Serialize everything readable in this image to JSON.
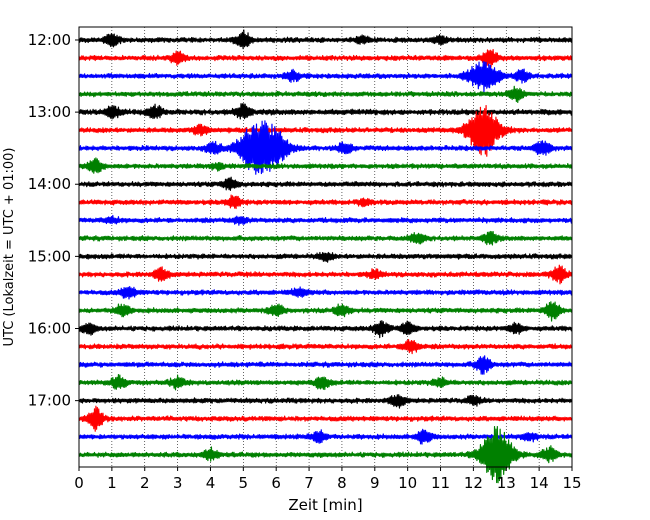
{
  "chart_data": {
    "type": "line",
    "title": "",
    "xlabel": "Zeit  [min]",
    "ylabel": "UTC (Lokalzeit = UTC + 01:00)",
    "xlim": [
      0,
      15
    ],
    "x_ticks": [
      "0",
      "1",
      "2",
      "3",
      "4",
      "5",
      "6",
      "7",
      "8",
      "9",
      "10",
      "11",
      "12",
      "13",
      "14",
      "15"
    ],
    "y_ticks": [
      "12:00",
      "13:00",
      "14:00",
      "15:00",
      "16:00",
      "17:00"
    ],
    "grid": "vertical dotted",
    "colors": [
      "#000000",
      "#ff0000",
      "#0000ff",
      "#008000"
    ],
    "trace_interval_min": 15,
    "traces": [
      {
        "start": "12:00",
        "color": "#000000",
        "base_amp": 0.22,
        "events": [
          {
            "t": 1.0,
            "a": 0.6
          },
          {
            "t": 5.0,
            "a": 0.9
          },
          {
            "t": 8.6,
            "a": 0.4
          },
          {
            "t": 11.0,
            "a": 0.4
          }
        ]
      },
      {
        "start": "12:15",
        "color": "#ff0000",
        "base_amp": 0.22,
        "events": [
          {
            "t": 3.0,
            "a": 0.6
          },
          {
            "t": 12.5,
            "a": 0.8
          }
        ]
      },
      {
        "start": "12:30",
        "color": "#0000ff",
        "base_amp": 0.22,
        "events": [
          {
            "t": 6.5,
            "a": 0.5
          },
          {
            "t": 12.3,
            "a": 1.5
          },
          {
            "t": 13.5,
            "a": 0.6
          }
        ]
      },
      {
        "start": "12:45",
        "color": "#008000",
        "base_amp": 0.22,
        "events": [
          {
            "t": 13.3,
            "a": 0.7
          }
        ]
      },
      {
        "start": "13:00",
        "color": "#000000",
        "base_amp": 0.25,
        "events": [
          {
            "t": 1.0,
            "a": 0.6
          },
          {
            "t": 2.3,
            "a": 0.6
          },
          {
            "t": 5.0,
            "a": 0.8
          }
        ]
      },
      {
        "start": "13:15",
        "color": "#ff0000",
        "base_amp": 0.22,
        "events": [
          {
            "t": 3.7,
            "a": 0.5
          },
          {
            "t": 12.3,
            "a": 2.8
          }
        ]
      },
      {
        "start": "13:30",
        "color": "#0000ff",
        "base_amp": 0.22,
        "events": [
          {
            "t": 4.1,
            "a": 0.6
          },
          {
            "t": 5.3,
            "a": 2.4
          },
          {
            "t": 5.9,
            "a": 2.0
          },
          {
            "t": 8.1,
            "a": 0.6
          },
          {
            "t": 14.1,
            "a": 0.8
          }
        ]
      },
      {
        "start": "13:45",
        "color": "#008000",
        "base_amp": 0.22,
        "events": [
          {
            "t": 0.5,
            "a": 0.7
          },
          {
            "t": 4.2,
            "a": 0.3
          }
        ]
      },
      {
        "start": "14:00",
        "color": "#000000",
        "base_amp": 0.22,
        "events": [
          {
            "t": 4.6,
            "a": 0.6
          }
        ]
      },
      {
        "start": "14:15",
        "color": "#ff0000",
        "base_amp": 0.22,
        "events": [
          {
            "t": 4.7,
            "a": 0.6
          },
          {
            "t": 8.7,
            "a": 0.3
          }
        ]
      },
      {
        "start": "14:30",
        "color": "#0000ff",
        "base_amp": 0.22,
        "events": [
          {
            "t": 1.0,
            "a": 0.3
          },
          {
            "t": 4.9,
            "a": 0.3
          }
        ]
      },
      {
        "start": "14:45",
        "color": "#008000",
        "base_amp": 0.22,
        "events": [
          {
            "t": 10.3,
            "a": 0.5
          },
          {
            "t": 12.5,
            "a": 0.6
          }
        ]
      },
      {
        "start": "15:00",
        "color": "#000000",
        "base_amp": 0.22,
        "events": [
          {
            "t": 7.5,
            "a": 0.4
          }
        ]
      },
      {
        "start": "15:15",
        "color": "#ff0000",
        "base_amp": 0.22,
        "events": [
          {
            "t": 2.5,
            "a": 0.6
          },
          {
            "t": 9.0,
            "a": 0.4
          },
          {
            "t": 14.6,
            "a": 0.9
          }
        ]
      },
      {
        "start": "15:30",
        "color": "#0000ff",
        "base_amp": 0.22,
        "events": [
          {
            "t": 1.5,
            "a": 0.6
          },
          {
            "t": 6.7,
            "a": 0.4
          }
        ]
      },
      {
        "start": "15:45",
        "color": "#008000",
        "base_amp": 0.22,
        "events": [
          {
            "t": 1.3,
            "a": 0.6
          },
          {
            "t": 6.0,
            "a": 0.6
          },
          {
            "t": 8.0,
            "a": 0.6
          },
          {
            "t": 14.4,
            "a": 1.0
          }
        ]
      },
      {
        "start": "16:00",
        "color": "#000000",
        "base_amp": 0.22,
        "events": [
          {
            "t": 0.3,
            "a": 0.5
          },
          {
            "t": 9.2,
            "a": 0.8
          },
          {
            "t": 10.0,
            "a": 0.6
          },
          {
            "t": 13.3,
            "a": 0.5
          }
        ]
      },
      {
        "start": "16:15",
        "color": "#ff0000",
        "base_amp": 0.22,
        "events": [
          {
            "t": 10.1,
            "a": 0.7
          }
        ]
      },
      {
        "start": "16:30",
        "color": "#0000ff",
        "base_amp": 0.22,
        "events": [
          {
            "t": 12.3,
            "a": 0.9
          }
        ]
      },
      {
        "start": "16:45",
        "color": "#008000",
        "base_amp": 0.22,
        "events": [
          {
            "t": 1.2,
            "a": 0.7
          },
          {
            "t": 3.0,
            "a": 0.6
          },
          {
            "t": 7.4,
            "a": 0.6
          },
          {
            "t": 11.0,
            "a": 0.4
          }
        ]
      },
      {
        "start": "17:00",
        "color": "#000000",
        "base_amp": 0.22,
        "events": [
          {
            "t": 9.7,
            "a": 0.6
          },
          {
            "t": 12.0,
            "a": 0.4
          }
        ]
      },
      {
        "start": "17:15",
        "color": "#ff0000",
        "base_amp": 0.22,
        "events": [
          {
            "t": 0.5,
            "a": 1.2
          }
        ]
      },
      {
        "start": "17:30",
        "color": "#0000ff",
        "base_amp": 0.22,
        "events": [
          {
            "t": 7.3,
            "a": 0.6
          },
          {
            "t": 10.5,
            "a": 0.7
          },
          {
            "t": 13.7,
            "a": 0.4
          }
        ]
      },
      {
        "start": "17:45",
        "color": "#008000",
        "base_amp": 0.22,
        "events": [
          {
            "t": 4.0,
            "a": 0.6
          },
          {
            "t": 12.7,
            "a": 3.0
          },
          {
            "t": 14.3,
            "a": 0.8
          }
        ]
      }
    ]
  }
}
